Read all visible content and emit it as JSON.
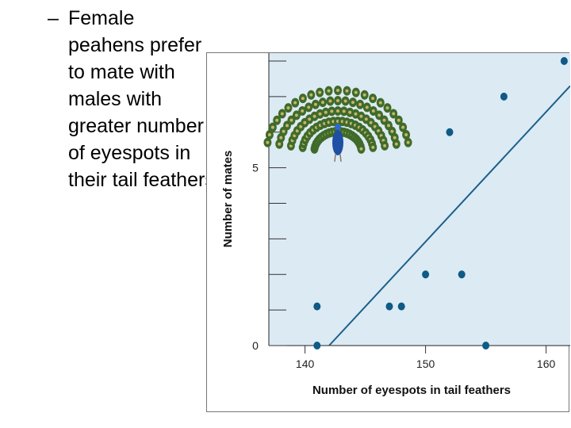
{
  "bullet": {
    "dash": "–",
    "text": "Female peahens prefer to mate with males with greater number of eyespots in their tail feathers"
  },
  "illustration": {
    "name": "peacock-with-fanned-tail"
  },
  "colors": {
    "plot_bg": "#dceaf4",
    "points": "#0f5a86",
    "line": "#1b5f8a",
    "peacock_body": "#1f4fa3",
    "feather": "#3f6b2a"
  },
  "chart_data": {
    "type": "scatter",
    "xlabel": "Number of eyespots in tail feathers",
    "ylabel": "Number of mates",
    "xlim": [
      137,
      162
    ],
    "ylim": [
      0,
      8
    ],
    "x_ticks": [
      140,
      150,
      160
    ],
    "x_tick_labels": [
      "140",
      "150",
      "160"
    ],
    "y_ticks": [
      0,
      1,
      2,
      3,
      4,
      5,
      6,
      7,
      8
    ],
    "y_tick_labels": [
      "0",
      "",
      "",
      "",
      "",
      "5",
      "",
      "",
      ""
    ],
    "grid": false,
    "points": [
      {
        "x": 141,
        "y": 0
      },
      {
        "x": 141,
        "y": 1.1
      },
      {
        "x": 147,
        "y": 1.1
      },
      {
        "x": 148,
        "y": 1.1
      },
      {
        "x": 150,
        "y": 2
      },
      {
        "x": 153,
        "y": 2
      },
      {
        "x": 155,
        "y": 0
      },
      {
        "x": 152,
        "y": 6
      },
      {
        "x": 156.5,
        "y": 7
      },
      {
        "x": 161.5,
        "y": 8
      }
    ],
    "trendline": {
      "x": [
        142,
        162
      ],
      "y": [
        0,
        7.3
      ]
    }
  }
}
